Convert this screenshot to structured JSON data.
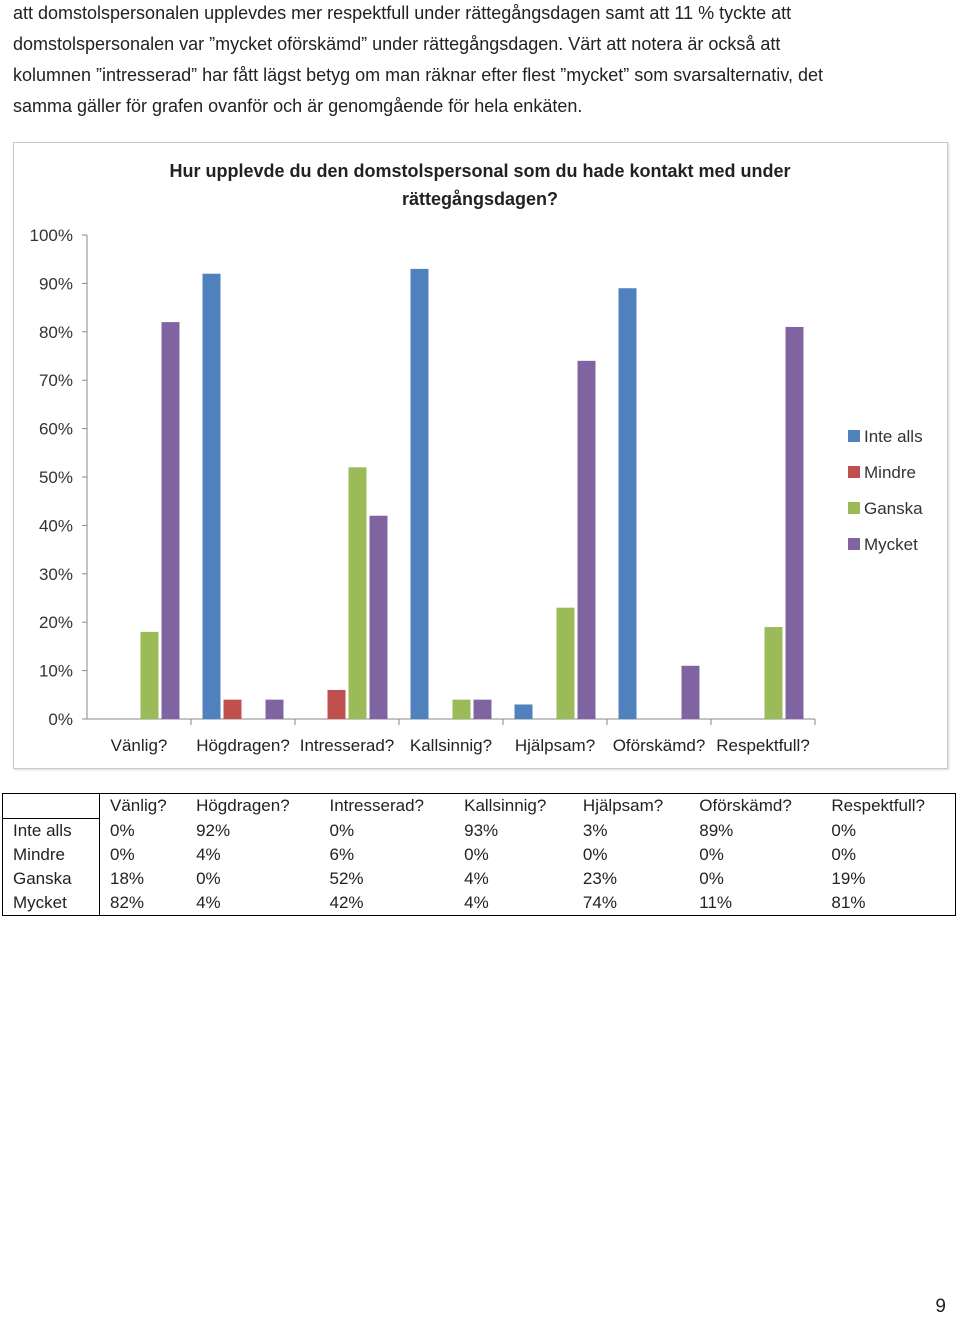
{
  "paragraph": {
    "lines": [
      "att domstolspersonalen upplevdes mer respektfull under rättegångsdagen samt att 11 % tyckte att",
      "domstolspersonalen var ”mycket oförskämd” under rättegångsdagen. Värt att notera är också att",
      "kolumnen ”intresserad” har fått lägst betyg om man räknar efter flest ”mycket” som svarsalternativ, det",
      "samma gäller för grafen ovanför och är genomgående för hela enkäten."
    ]
  },
  "chart_data": {
    "type": "bar",
    "title": "Hur upplevde du den domstolspersonal som du hade kontakt med under rättegångsdagen?",
    "categories": [
      "Vänlig?",
      "Högdragen?",
      "Intresserad?",
      "Kallsinnig?",
      "Hjälpsam?",
      "Oförskämd?",
      "Respektfull?"
    ],
    "series": [
      {
        "name": "Inte alls",
        "color": "#4f81bd",
        "values": [
          0,
          92,
          0,
          93,
          3,
          89,
          0
        ],
        "labels": [
          "0%",
          "92%",
          "0%",
          "93%",
          "3%",
          "89%",
          "0%"
        ]
      },
      {
        "name": "Mindre",
        "color": "#c0504d",
        "values": [
          0,
          4,
          6,
          0,
          0,
          0,
          0
        ],
        "labels": [
          "0%",
          "4%",
          "6%",
          "0%",
          "0%",
          "0%",
          "0%"
        ]
      },
      {
        "name": "Ganska",
        "color": "#9bbb59",
        "values": [
          18,
          0,
          52,
          4,
          23,
          0,
          19
        ],
        "labels": [
          "18%",
          "0%",
          "52%",
          "4%",
          "23%",
          "0%",
          "19%"
        ]
      },
      {
        "name": "Mycket",
        "color": "#8064a2",
        "values": [
          82,
          4,
          42,
          4,
          74,
          11,
          81
        ],
        "labels": [
          "82%",
          "4%",
          "42%",
          "4%",
          "74%",
          "11%",
          "81%"
        ]
      }
    ],
    "yticks": [
      "0%",
      "10%",
      "20%",
      "30%",
      "40%",
      "50%",
      "60%",
      "70%",
      "80%",
      "90%",
      "100%"
    ],
    "ylim": [
      0,
      100
    ],
    "grid": false,
    "legend_position": "right"
  },
  "page_number": "9"
}
